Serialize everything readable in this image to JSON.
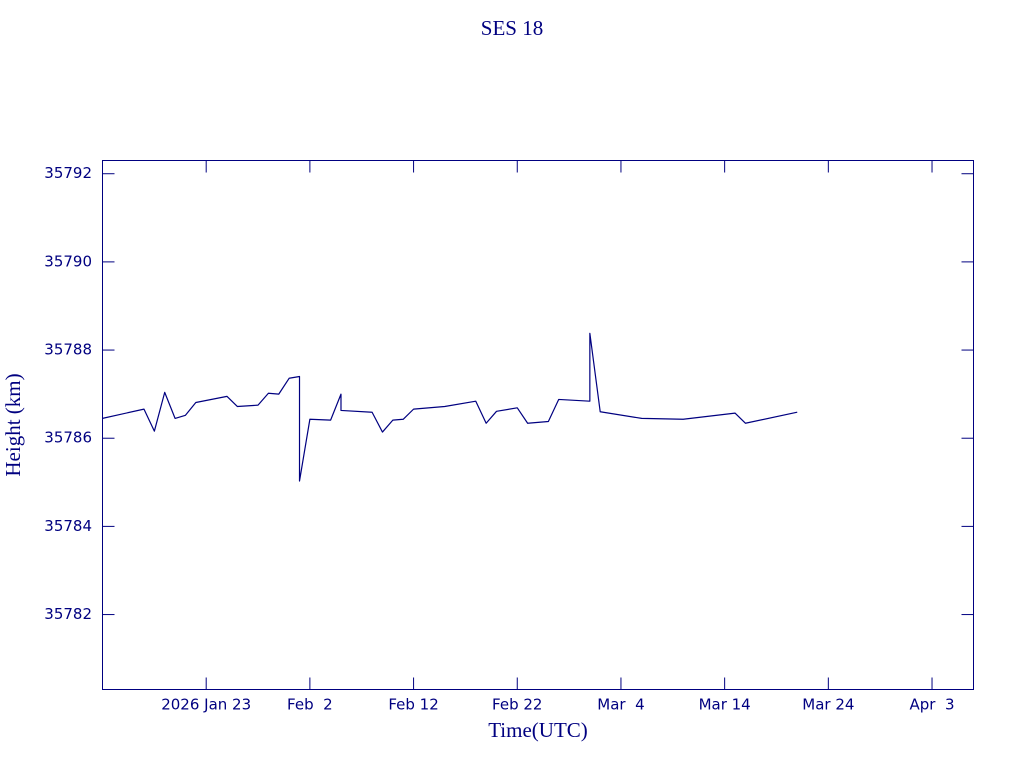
{
  "chart_data": {
    "type": "line",
    "title": "SES 18",
    "xlabel": "Time(UTC)",
    "ylabel": "Height (km)",
    "color": "#000080",
    "xlim": [
      "2026-01-13",
      "2026-04-07"
    ],
    "xticks": [
      {
        "value": "2026-01-23",
        "label": "2026 Jan 23"
      },
      {
        "value": "2026-02-02",
        "label": "Feb  2"
      },
      {
        "value": "2026-02-12",
        "label": "Feb 12"
      },
      {
        "value": "2026-02-22",
        "label": "Feb 22"
      },
      {
        "value": "2026-03-04",
        "label": "Mar  4"
      },
      {
        "value": "2026-03-14",
        "label": "Mar 14"
      },
      {
        "value": "2026-03-24",
        "label": "Mar 24"
      },
      {
        "value": "2026-04-03",
        "label": "Apr  3"
      }
    ],
    "ylim": [
      35780.3,
      35792.3
    ],
    "yticks": [
      35782,
      35784,
      35786,
      35788,
      35790,
      35792
    ],
    "x": [
      "2026-01-13",
      "2026-01-17",
      "2026-01-18",
      "2026-01-19",
      "2026-01-20",
      "2026-01-21",
      "2026-01-22",
      "2026-01-25",
      "2026-01-26",
      "2026-01-28",
      "2026-01-29",
      "2026-01-30",
      "2026-01-31",
      "2026-02-01",
      "2026-02-01",
      "2026-02-02",
      "2026-02-04",
      "2026-02-05",
      "2026-02-05",
      "2026-02-08",
      "2026-02-09",
      "2026-02-10",
      "2026-02-11",
      "2026-02-12",
      "2026-02-15",
      "2026-02-18",
      "2026-02-19",
      "2026-02-20",
      "2026-02-22",
      "2026-02-23",
      "2026-02-25",
      "2026-02-26",
      "2026-03-01",
      "2026-03-01",
      "2026-03-02",
      "2026-03-06",
      "2026-03-10",
      "2026-03-15",
      "2026-03-16",
      "2026-03-21"
    ],
    "values": [
      35786.45,
      35786.66,
      35786.16,
      35787.04,
      35786.45,
      35786.52,
      35786.81,
      35786.95,
      35786.72,
      35786.75,
      35787.02,
      35787.0,
      35787.36,
      35787.4,
      35785.03,
      35786.43,
      35786.41,
      35787.0,
      35786.63,
      35786.59,
      35786.14,
      35786.41,
      35786.43,
      35786.66,
      35786.72,
      35786.84,
      35786.34,
      35786.61,
      35786.69,
      35786.34,
      35786.38,
      35786.88,
      35786.84,
      35788.38,
      35786.6,
      35786.45,
      35786.43,
      35786.57,
      35786.34,
      35786.59
    ]
  }
}
